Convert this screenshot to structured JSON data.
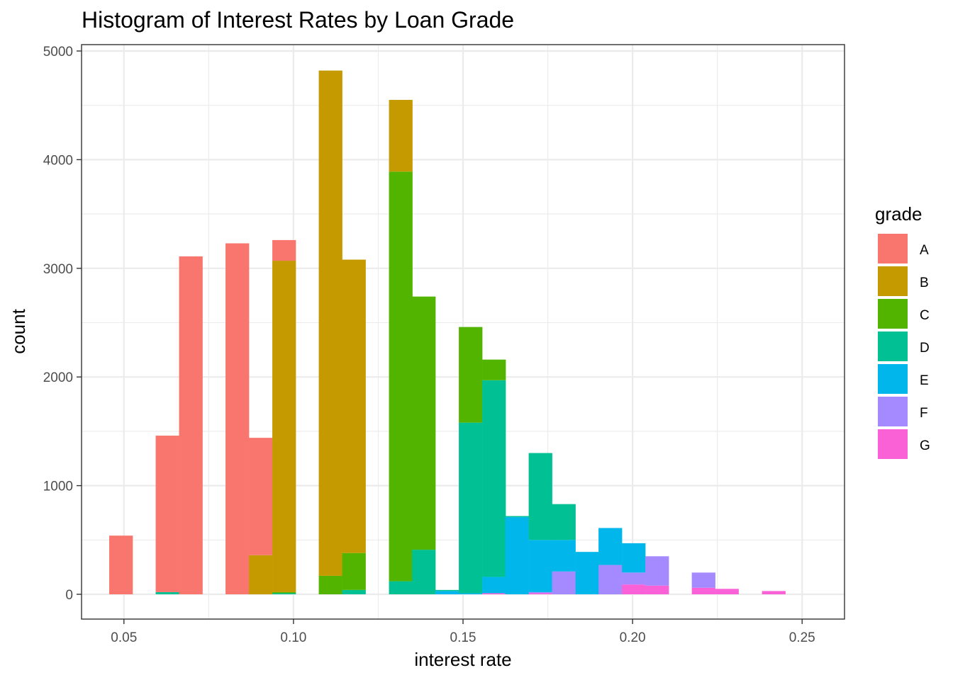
{
  "chart_data": {
    "type": "histogram",
    "stacked": true,
    "title": "Histogram of Interest Rates by Loan Grade",
    "xlabel": "interest rate",
    "ylabel": "count",
    "xlim": [
      0.0375,
      0.2625
    ],
    "ylim": [
      0,
      5000
    ],
    "xticks": [
      0.05,
      0.1,
      0.15,
      0.2,
      0.25
    ],
    "xtick_labels": [
      "0.05",
      "0.10",
      "0.15",
      "0.20",
      "0.25"
    ],
    "yticks": [
      0,
      1000,
      2000,
      3000,
      4000,
      5000
    ],
    "ytick_labels": [
      "0",
      "1000",
      "2000",
      "3000",
      "4000",
      "5000"
    ],
    "grid": true,
    "bin_width": 0.006875,
    "bin_centers": [
      0.0491,
      0.0559,
      0.0628,
      0.0697,
      0.0766,
      0.0834,
      0.0903,
      0.0972,
      0.1041,
      0.1109,
      0.1178,
      0.1247,
      0.1316,
      0.1384,
      0.1453,
      0.1522,
      0.1591,
      0.1659,
      0.1728,
      0.1797,
      0.1866,
      0.1934,
      0.2003,
      0.2072,
      0.2141,
      0.2209,
      0.2278,
      0.2347,
      0.2416,
      0.2484
    ],
    "legend": {
      "title": "grade",
      "position": "right"
    },
    "series": [
      {
        "name": "A",
        "color": "#F8766D",
        "values": [
          540,
          0,
          1440,
          3110,
          0,
          3230,
          1080,
          190,
          0,
          0,
          0,
          0,
          0,
          0,
          0,
          0,
          0,
          0,
          0,
          0,
          0,
          0,
          0,
          0,
          0,
          0,
          0,
          0,
          0,
          0
        ]
      },
      {
        "name": "B",
        "color": "#C49A00",
        "values": [
          0,
          0,
          0,
          0,
          0,
          0,
          360,
          3050,
          0,
          4650,
          2700,
          0,
          660,
          0,
          0,
          0,
          0,
          0,
          0,
          0,
          0,
          0,
          0,
          0,
          0,
          0,
          0,
          0,
          0,
          0
        ]
      },
      {
        "name": "C",
        "color": "#53B400",
        "values": [
          0,
          0,
          0,
          0,
          0,
          0,
          0,
          10,
          0,
          170,
          340,
          0,
          3770,
          2330,
          0,
          880,
          190,
          0,
          0,
          0,
          0,
          0,
          0,
          0,
          0,
          0,
          0,
          0,
          0,
          0
        ]
      },
      {
        "name": "D",
        "color": "#00C094",
        "values": [
          0,
          0,
          20,
          0,
          0,
          0,
          0,
          10,
          0,
          0,
          40,
          0,
          120,
          410,
          10,
          1570,
          1810,
          10,
          800,
          330,
          0,
          0,
          0,
          0,
          0,
          0,
          0,
          0,
          0,
          0
        ]
      },
      {
        "name": "E",
        "color": "#00B6EB",
        "values": [
          0,
          0,
          0,
          0,
          0,
          0,
          0,
          0,
          0,
          0,
          0,
          0,
          0,
          0,
          30,
          10,
          150,
          710,
          480,
          290,
          390,
          340,
          270,
          0,
          0,
          0,
          0,
          0,
          0,
          0
        ]
      },
      {
        "name": "F",
        "color": "#A58AFF",
        "values": [
          0,
          0,
          0,
          0,
          0,
          0,
          0,
          0,
          0,
          0,
          0,
          0,
          0,
          0,
          0,
          0,
          0,
          0,
          10,
          210,
          0,
          270,
          110,
          270,
          0,
          140,
          0,
          0,
          0,
          0
        ]
      },
      {
        "name": "G",
        "color": "#FB61D7",
        "values": [
          0,
          0,
          0,
          0,
          0,
          0,
          0,
          0,
          0,
          0,
          0,
          0,
          0,
          0,
          0,
          0,
          10,
          0,
          10,
          0,
          0,
          0,
          90,
          80,
          0,
          60,
          50,
          0,
          30,
          0
        ]
      }
    ]
  }
}
